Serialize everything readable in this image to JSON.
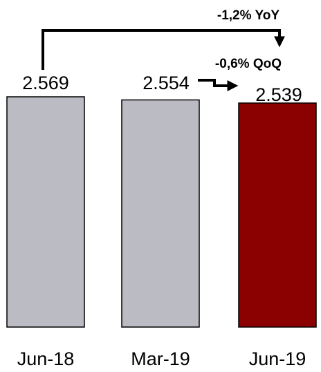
{
  "chart_data": {
    "type": "bar",
    "categories": [
      "Jun-18",
      "Mar-19",
      "Jun-19"
    ],
    "values": [
      2569,
      2554,
      2539
    ],
    "value_labels": [
      "2.569",
      "2.554",
      "2.539"
    ],
    "colors": [
      "#BBBCC3",
      "#BBBCC3",
      "#8B0000"
    ],
    "title": "",
    "xlabel": "",
    "ylabel": "",
    "grid": false,
    "legend": "none",
    "annotations": [
      {
        "label": "-1,2% YoY",
        "from": "Jun-18",
        "to": "Jun-19"
      },
      {
        "label": "-0,6% QoQ",
        "from": "Mar-19",
        "to": "Jun-19"
      }
    ]
  }
}
